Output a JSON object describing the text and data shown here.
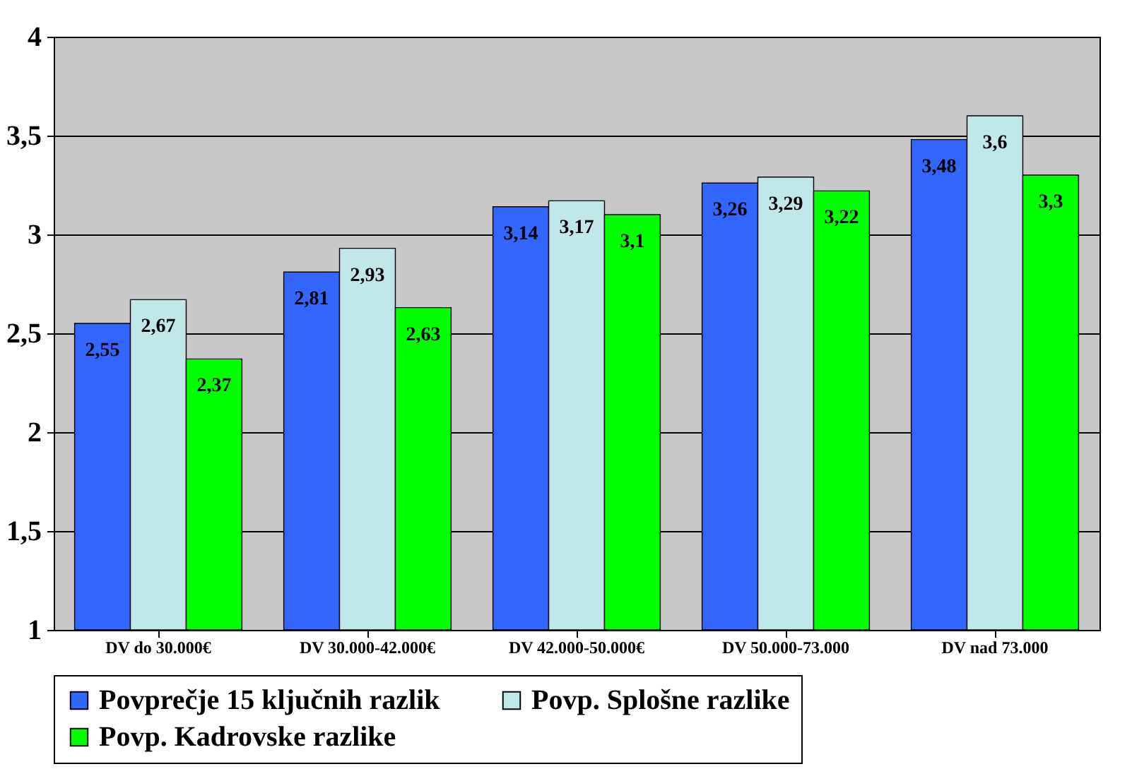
{
  "chart_data": {
    "type": "bar",
    "categories": [
      "DV do 30.000€",
      "DV 30.000-42.000€",
      "DV 42.000-50.000€",
      "DV 50.000-73.000",
      "DV nad 73.000"
    ],
    "series": [
      {
        "name": "Povprečje 15 ključnih razlik",
        "color": "#3366ff",
        "values": [
          2.55,
          2.81,
          3.14,
          3.26,
          3.48
        ],
        "value_labels": [
          "2,55",
          "2,81",
          "3,14",
          "3,26",
          "3,48"
        ]
      },
      {
        "name": "Povp. Splošne razlike",
        "color": "#c0e8e8",
        "values": [
          2.67,
          2.93,
          3.17,
          3.29,
          3.6
        ],
        "value_labels": [
          "2,67",
          "2,93",
          "3,17",
          "3,29",
          "3,6"
        ]
      },
      {
        "name": "Povp. Kadrovske razlike",
        "color": "#00ff00",
        "values": [
          2.37,
          2.63,
          3.1,
          3.22,
          3.3
        ],
        "value_labels": [
          "2,37",
          "2,63",
          "3,1",
          "3,22",
          "3,3"
        ]
      }
    ],
    "ylim": [
      1,
      4
    ],
    "yticks": [
      1,
      {
        "value": 1.5,
        "label": "1,5"
      },
      2,
      {
        "value": 2.5,
        "label": "2,5"
      },
      3,
      {
        "value": 3.5,
        "label": "3,5"
      },
      4
    ],
    "grid": "y",
    "legend": "bottom"
  }
}
